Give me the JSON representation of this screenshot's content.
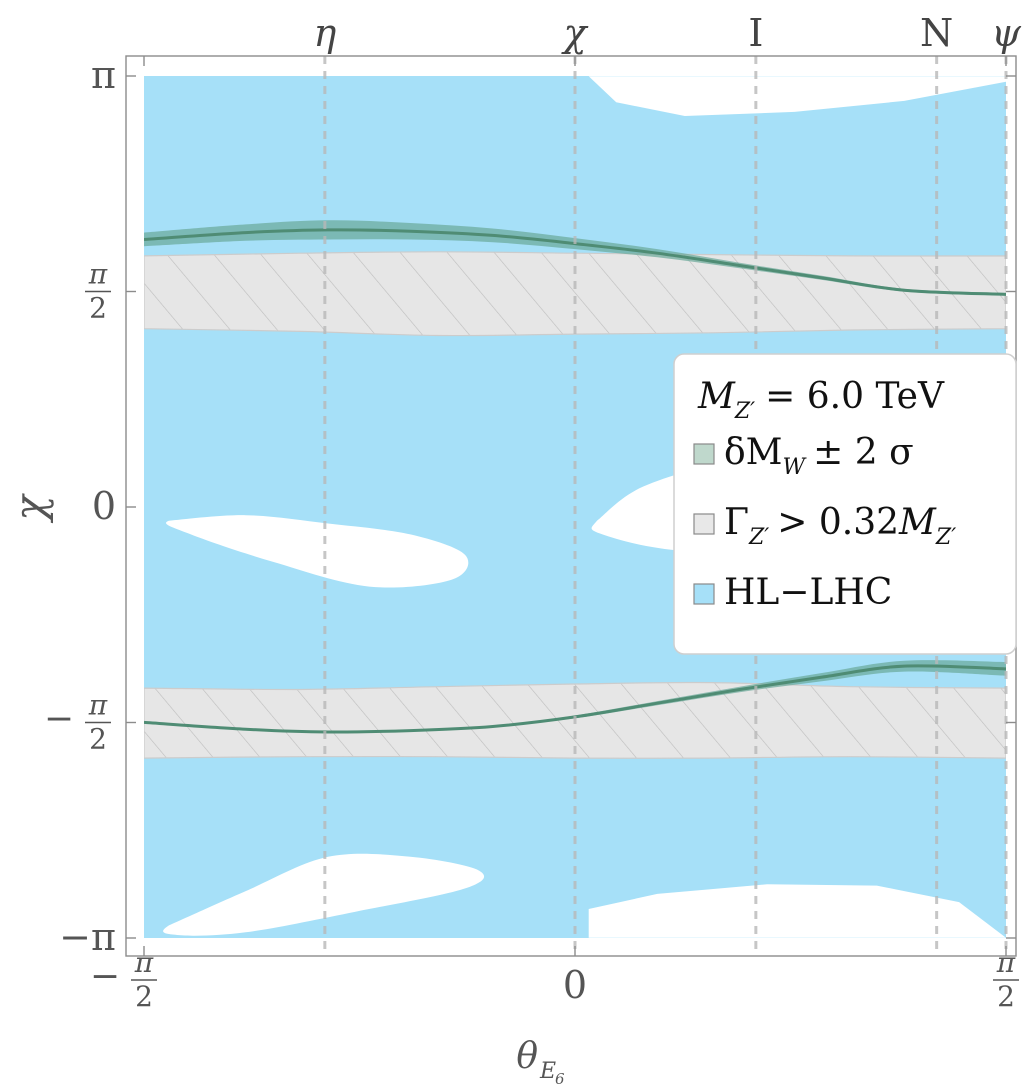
{
  "chart_data": {
    "type": "contour",
    "title": "",
    "xlabel": "θ",
    "xlabel_sub": "E",
    "xlabel_subsub": "6",
    "ylabel": "χ",
    "xlim": [
      -1.5708,
      1.5708
    ],
    "ylim": [
      -3.1416,
      3.1416
    ],
    "x_ticks": [
      {
        "value": -1.5708,
        "sign": "−",
        "num": "π",
        "den": "2"
      },
      {
        "value": 0,
        "text": "0"
      },
      {
        "value": 1.5708,
        "sign": "",
        "num": "π",
        "den": "2"
      }
    ],
    "y_ticks": [
      {
        "value": 3.1416,
        "text": "π"
      },
      {
        "value": 1.5708,
        "sign": "",
        "num": "π",
        "den": "2"
      },
      {
        "value": 0,
        "text": "0"
      },
      {
        "value": -1.5708,
        "sign": "−",
        "num": "π",
        "den": "2"
      },
      {
        "value": -3.1416,
        "text": "−π"
      }
    ],
    "model_lines": [
      {
        "name": "η",
        "value": -0.9117
      },
      {
        "name": "χ",
        "value": 0
      },
      {
        "name": "I",
        "value": 0.6591
      },
      {
        "name": "N",
        "value": 1.3181
      },
      {
        "name": "ψ",
        "value": 1.5708
      }
    ],
    "legend": {
      "title_prefix": "M",
      "title_sub": "Z′",
      "title_value": "= 6.0 TeV",
      "entries": [
        {
          "key": "mw",
          "pre": "δM",
          "sub": "W",
          "post": "± 2 σ",
          "color": "#bfd8cc"
        },
        {
          "key": "width",
          "pre": "Γ",
          "sub": "Z′",
          "post": "> 0.32",
          "post2": "M",
          "sub2": "Z′",
          "color": "#e8e8e8"
        },
        {
          "key": "hllhc",
          "pre": "HL−LHC",
          "sub": "",
          "post": "",
          "color": "#a6e0f8"
        }
      ]
    },
    "series": [
      {
        "name": "δM_W ± 2σ (upper branch)",
        "x": [
          -1.5708,
          -1.2,
          -0.9,
          -0.6,
          -0.3,
          0,
          0.3,
          0.6,
          0.9,
          1.2,
          1.5708
        ],
        "y": [
          1.95,
          2.0,
          2.02,
          2.01,
          1.98,
          1.92,
          1.85,
          1.76,
          1.67,
          1.58,
          1.55
        ],
        "band": [
          0.05,
          0.06,
          0.07,
          0.06,
          0.05,
          0.04,
          0.03,
          0.02,
          0.015,
          0.01,
          0.01
        ]
      },
      {
        "name": "δM_W ± 2σ (lower branch)",
        "x": [
          -1.5708,
          -1.2,
          -0.9,
          -0.6,
          -0.3,
          0,
          0.3,
          0.6,
          0.9,
          1.2,
          1.5708
        ],
        "y": [
          -1.57,
          -1.62,
          -1.64,
          -1.63,
          -1.6,
          -1.53,
          -1.43,
          -1.33,
          -1.24,
          -1.16,
          -1.18
        ],
        "band": [
          0.005,
          0.005,
          0.005,
          0.005,
          0.005,
          0.01,
          0.015,
          0.02,
          0.03,
          0.04,
          0.05
        ]
      },
      {
        "name": "Γ_Z′ > 0.32 M_Z′ (upper band)",
        "x": [
          -1.5708,
          -1.0,
          -0.5,
          0,
          0.5,
          1.0,
          1.5708
        ],
        "y_low": [
          1.3,
          1.28,
          1.25,
          1.26,
          1.27,
          1.29,
          1.3
        ],
        "y_high": [
          1.83,
          1.85,
          1.86,
          1.85,
          1.84,
          1.83,
          1.83
        ]
      },
      {
        "name": "Γ_Z′ > 0.32 M_Z′ (lower band)",
        "x": [
          -1.5708,
          -1.0,
          -0.5,
          0,
          0.5,
          1.0,
          1.5708
        ],
        "y_low": [
          -1.83,
          -1.82,
          -1.82,
          -1.83,
          -1.83,
          -1.82,
          -1.83
        ],
        "y_high": [
          -1.32,
          -1.33,
          -1.31,
          -1.29,
          -1.28,
          -1.31,
          -1.32
        ]
      }
    ],
    "hllhc_excluded_regions": [
      {
        "name": "upper-right",
        "x": [
          0.05,
          0.15,
          0.4,
          0.8,
          1.2,
          1.5708,
          1.5708,
          0.05
        ],
        "y": [
          3.14,
          2.95,
          2.85,
          2.88,
          2.96,
          3.1,
          3.14,
          3.14
        ]
      },
      {
        "name": "middle-left",
        "x": [
          -1.48,
          -1.2,
          -0.9,
          -0.6,
          -0.4,
          -0.45,
          -0.75,
          -1.1,
          -1.4
        ],
        "y": [
          -0.1,
          -0.06,
          -0.12,
          -0.2,
          -0.35,
          -0.53,
          -0.58,
          -0.4,
          -0.2
        ]
      },
      {
        "name": "middle-right",
        "x": [
          0.08,
          0.25,
          0.6,
          1.0,
          1.5,
          1.5,
          0.9,
          0.4,
          0.1
        ],
        "y": [
          -0.1,
          0.15,
          0.35,
          0.42,
          0.4,
          -0.36,
          -0.3,
          -0.32,
          -0.2
        ]
      },
      {
        "name": "lower-left",
        "x": [
          -1.48,
          -1.2,
          -0.9,
          -0.6,
          -0.35,
          -0.4,
          -0.8,
          -1.2,
          -1.45
        ],
        "y": [
          -3.05,
          -2.8,
          -2.55,
          -2.55,
          -2.65,
          -2.78,
          -2.95,
          -3.1,
          -3.12
        ]
      },
      {
        "name": "lower-right",
        "x": [
          0.05,
          0.3,
          0.7,
          1.1,
          1.4,
          1.5708,
          1.5708,
          0.05
        ],
        "y": [
          -2.93,
          -2.82,
          -2.75,
          -2.76,
          -2.88,
          -3.14,
          -3.14,
          -3.14
        ]
      }
    ]
  }
}
